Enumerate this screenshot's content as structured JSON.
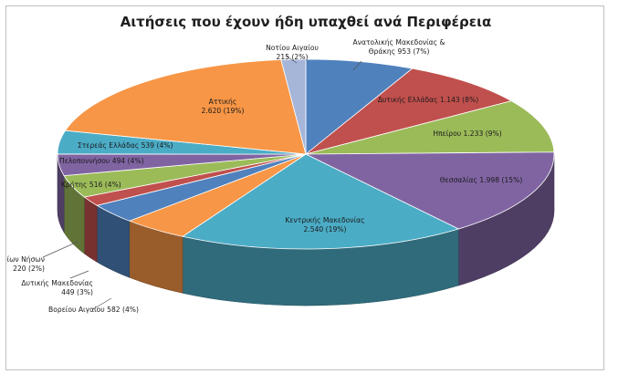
{
  "chart_data": {
    "type": "pie",
    "title": "Αιτήσεις που έχουν ήδη υπαχθεί ανά Περιφέρεια",
    "slices": [
      {
        "name": "Ανατολικής Μακεδονίας & Θράκης",
        "value": 953,
        "pct": "7%",
        "value_text": "953",
        "color": "#4f81bd",
        "lines": [
          "Ανατολικής Μακεδονίας &",
          "Θράκης 953 (7%)"
        ]
      },
      {
        "name": "Δυτικής Ελλάδας",
        "value": 1143,
        "pct": "8%",
        "value_text": "1.143",
        "color": "#c0504d",
        "lines": [
          "Δυτικής Ελλάδας 1.143 (8%)"
        ]
      },
      {
        "name": "Ηπείρου",
        "value": 1233,
        "pct": "9%",
        "value_text": "1.233",
        "color": "#9bbb59",
        "lines": [
          "Ηπείρου 1.233 (9%)"
        ]
      },
      {
        "name": "Θεσσαλίας",
        "value": 1998,
        "pct": "15%",
        "value_text": "1.998",
        "color": "#8064a2",
        "lines": [
          "Θεσσαλίας 1.998 (15%)"
        ]
      },
      {
        "name": "Κεντρικής Μακεδονίας",
        "value": 2540,
        "pct": "19%",
        "value_text": "2.540",
        "color": "#4bacc6",
        "lines": [
          "Κεντρικής Μακεδονίας",
          "2.540 (19%)"
        ]
      },
      {
        "name": "Βορείου Αιγαίου",
        "value": 582,
        "pct": "4%",
        "value_text": "582",
        "color": "#f79646",
        "lines": [
          "Βορείου Αιγαίου 582 (4%)"
        ]
      },
      {
        "name": "Δυτικής Μακεδονίας",
        "value": 449,
        "pct": "3%",
        "value_text": "449",
        "color": "#4f81bd",
        "lines": [
          "Δυτικής Μακεδονίας",
          "449 (3%)"
        ]
      },
      {
        "name": "Ιονίων Νήσων",
        "value": 220,
        "pct": "2%",
        "value_text": "220",
        "color": "#c0504d",
        "lines": [
          "Ιονίων Νήσων",
          "220 (2%)"
        ]
      },
      {
        "name": "Κρήτης",
        "value": 516,
        "pct": "4%",
        "value_text": "516",
        "color": "#9bbb59",
        "lines": [
          "Κρήτης 516 (4%)"
        ]
      },
      {
        "name": "Πελοποννήσου",
        "value": 494,
        "pct": "4%",
        "value_text": "494",
        "color": "#8064a2",
        "lines": [
          "Πελοποννήσου 494 (4%)"
        ]
      },
      {
        "name": "Στερεάς Ελλάδας",
        "value": 539,
        "pct": "4%",
        "value_text": "539",
        "color": "#4bacc6",
        "lines": [
          "Στερεάς Ελλάδας 539 (4%)"
        ]
      },
      {
        "name": "Αττικής",
        "value": 2620,
        "pct": "19%",
        "value_text": "2.620",
        "color": "#f79646",
        "lines": [
          "Αττικής",
          "2.620 (19%)"
        ]
      },
      {
        "name": "Νοτίου Αιγαίου",
        "value": 215,
        "pct": "2%",
        "value_text": "215",
        "color": "#a5b6d9",
        "lines": [
          "Νοτίου Αιγαίου",
          "215 (2%)"
        ]
      }
    ]
  }
}
